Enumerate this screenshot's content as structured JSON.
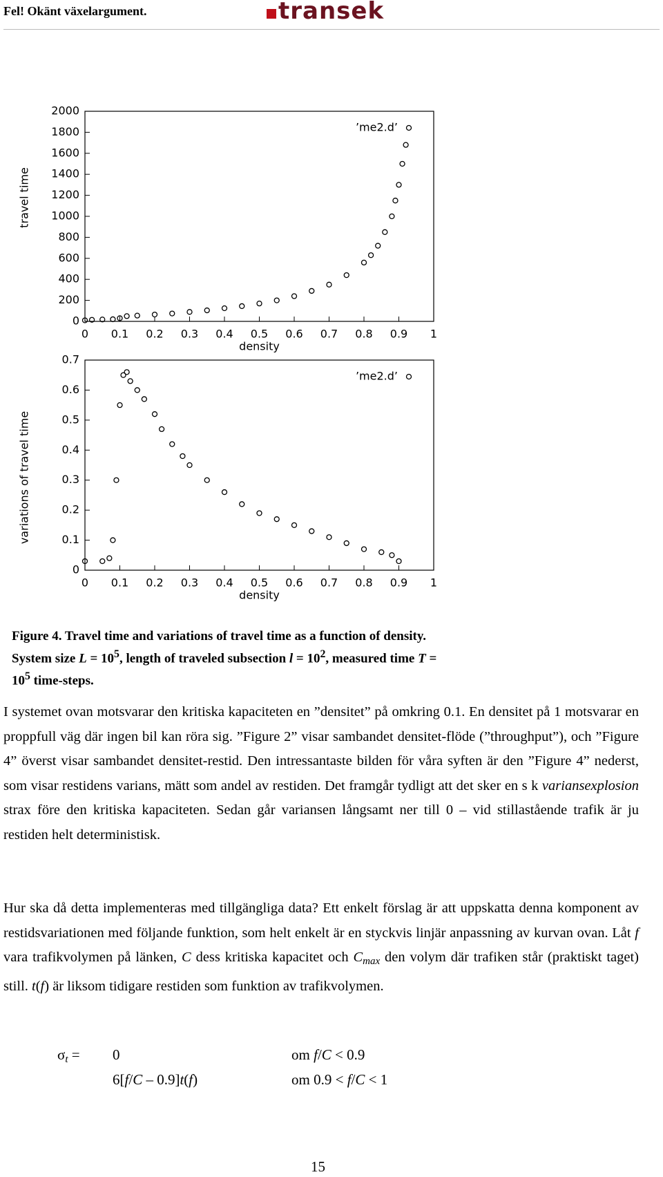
{
  "header": {
    "left": "Fel! Okänt växelargument.",
    "logo": "transek"
  },
  "chart_data": [
    {
      "type": "scatter",
      "xlabel": "density",
      "ylabel": "travel time",
      "x": [
        0,
        0.02,
        0.05,
        0.08,
        0.1,
        0.12,
        0.15,
        0.2,
        0.25,
        0.3,
        0.35,
        0.4,
        0.45,
        0.5,
        0.55,
        0.6,
        0.65,
        0.7,
        0.75,
        0.8,
        0.82,
        0.84,
        0.86,
        0.88,
        0.89,
        0.9,
        0.91,
        0.92
      ],
      "series": [
        {
          "name": "’me2.d’",
          "color": "#000000",
          "values": [
            10,
            15,
            18,
            20,
            30,
            50,
            55,
            65,
            75,
            90,
            105,
            125,
            145,
            170,
            200,
            240,
            290,
            350,
            440,
            560,
            630,
            720,
            850,
            1000,
            1150,
            1300,
            1500,
            1680
          ]
        }
      ],
      "xlim": [
        0,
        1
      ],
      "ylim": [
        0,
        2000
      ],
      "xticks": [
        0,
        0.1,
        0.2,
        0.3,
        0.4,
        0.5,
        0.6,
        0.7,
        0.8,
        0.9,
        1
      ],
      "yticks": [
        0,
        200,
        400,
        600,
        800,
        1000,
        1200,
        1400,
        1600,
        1800,
        2000
      ]
    },
    {
      "type": "scatter",
      "xlabel": "density",
      "ylabel": "variations of travel time",
      "x": [
        0,
        0.05,
        0.07,
        0.08,
        0.09,
        0.1,
        0.11,
        0.12,
        0.13,
        0.15,
        0.17,
        0.2,
        0.22,
        0.25,
        0.28,
        0.3,
        0.35,
        0.4,
        0.45,
        0.5,
        0.55,
        0.6,
        0.65,
        0.7,
        0.75,
        0.8,
        0.85,
        0.88,
        0.9
      ],
      "series": [
        {
          "name": "’me2.d’",
          "color": "#000000",
          "values": [
            0.03,
            0.03,
            0.04,
            0.1,
            0.3,
            0.55,
            0.65,
            0.66,
            0.63,
            0.6,
            0.57,
            0.52,
            0.47,
            0.42,
            0.38,
            0.35,
            0.3,
            0.26,
            0.22,
            0.19,
            0.17,
            0.15,
            0.13,
            0.11,
            0.09,
            0.07,
            0.06,
            0.05,
            0.03
          ]
        }
      ],
      "xlim": [
        0,
        1
      ],
      "ylim": [
        0,
        0.7
      ],
      "xticks": [
        0,
        0.1,
        0.2,
        0.3,
        0.4,
        0.5,
        0.6,
        0.7,
        0.8,
        0.9,
        1
      ],
      "yticks": [
        0,
        0.1,
        0.2,
        0.3,
        0.4,
        0.5,
        0.6,
        0.7
      ]
    }
  ],
  "caption": [
    "Figure 4.",
    " Travel time and variations of travel time as a function of density. System size ",
    "L",
    " = 10",
    "5",
    ", length of traveled subsection ",
    "l",
    " = 10",
    "2",
    ", measured time ",
    "T",
    " = 10",
    "5",
    " time-steps."
  ],
  "paragraphs": [
    [
      "I systemet ovan motsvarar den kritiska kapaciteten en ”densitet” på omkring 0.1. En densitet på 1 motsvarar en proppfull väg där ingen bil kan röra sig. ”Figure 2” visar sambandet densitet-flöde (”throughput”), och ”Figure 4” överst visar sambandet densitet-restid. Den intressantaste bilden för våra syften är den ”Figure 4” nederst, som visar restidens varians, mätt som andel av restiden. Det framgår tydligt att det sker en s k ",
      "variansexplosion",
      " strax före den kritiska kapaciteten. Sedan går variansen långsamt ner till 0 – vid stillastående trafik är ju restiden helt deterministisk."
    ],
    [
      "Hur ska då detta implementeras med tillgängliga data? Ett enkelt förslag är att uppskatta denna komponent av restidsvariationen med följande funktion, som helt enkelt är en styckvis linjär anpassning av kurvan ovan. Låt ",
      "f",
      " vara trafikvolymen på länken, ",
      "C",
      " dess kritiska kapacitet och ",
      "C",
      "max",
      " den volym där trafiken står (praktiskt taget) still. ",
      "t",
      "(",
      "f",
      ") är liksom tidigare restiden som funktion av trafikvolymen."
    ]
  ],
  "formula": {
    "lhs": [
      "σ",
      "t",
      " ="
    ],
    "rows": [
      [
        [
          "0"
        ],
        [
          "om ",
          "f",
          "/",
          "C",
          " < 0.9"
        ]
      ],
      [
        [
          "6[",
          "f",
          "/",
          "C",
          " – 0.9]",
          "t",
          "(",
          "f",
          ")"
        ],
        [
          "om 0.9 < ",
          "f",
          "/",
          "C",
          " < 1"
        ]
      ]
    ]
  },
  "page_number": "15"
}
